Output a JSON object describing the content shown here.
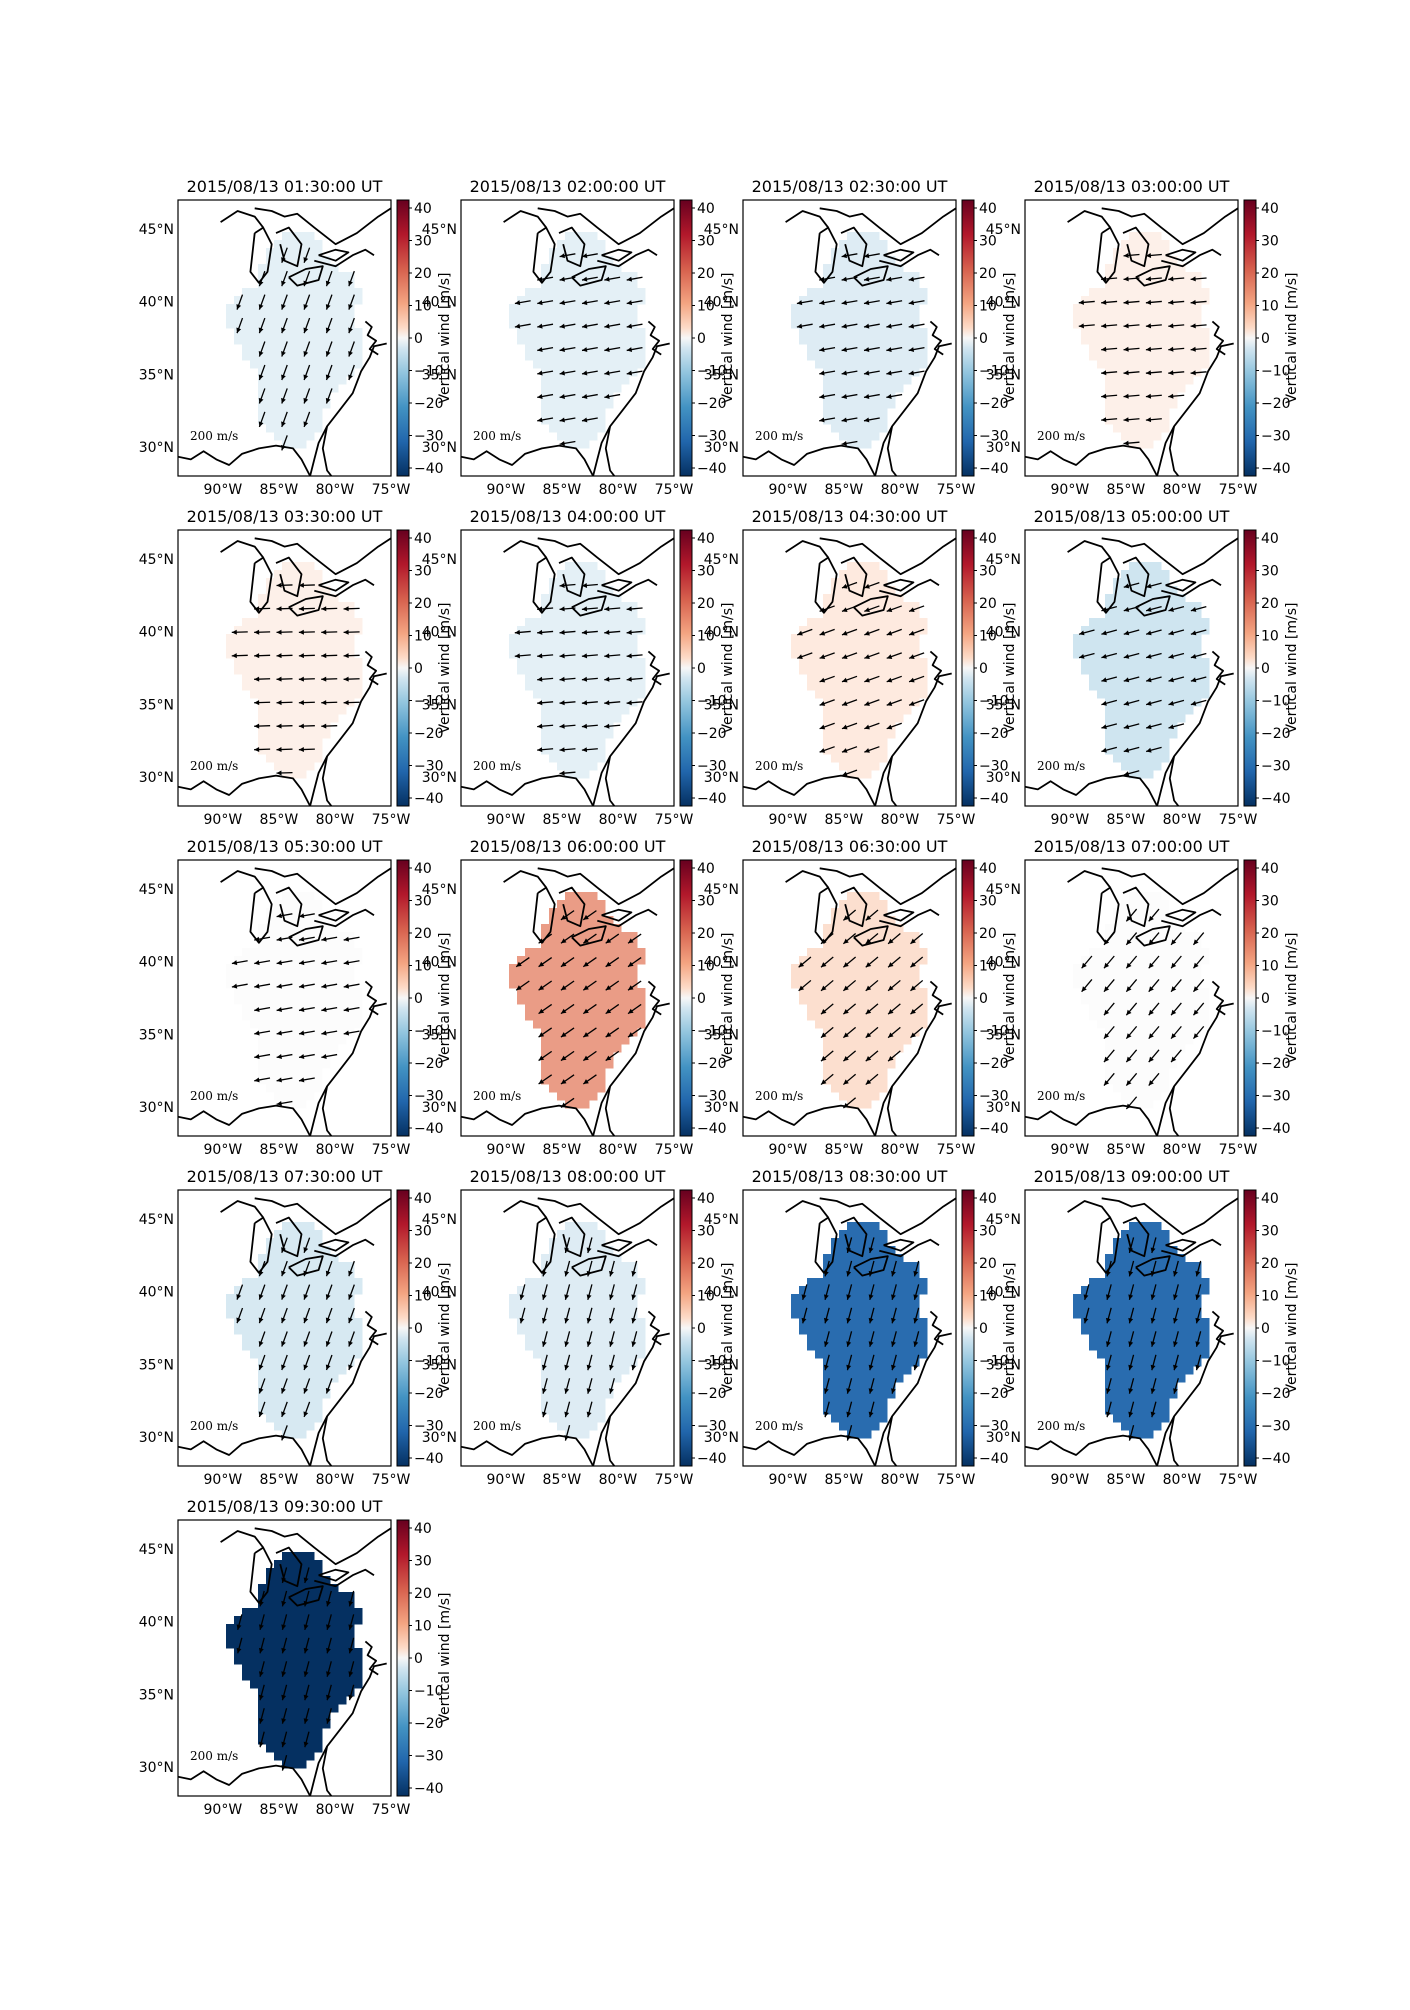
{
  "figure": {
    "colorbar_label": "Vertical wind [m/s]",
    "colorbar_ticks": [
      "40",
      "30",
      "20",
      "10",
      "0",
      "−10",
      "−20",
      "−30",
      "−40"
    ],
    "colorbar_range": [
      -40,
      40
    ],
    "colormap": "RdBu_r",
    "lat_ticks": [
      "45°N",
      "40°N",
      "35°N",
      "30°N"
    ],
    "lon_ticks": [
      "90°W",
      "85°W",
      "80°W",
      "75°W"
    ],
    "reference_arrow_label": "200 m/s",
    "reference_arrow_value": "200",
    "reference_arrow_unit": "m/s"
  },
  "chart_data": {
    "type": "heatmap",
    "map_extent": {
      "lon": [
        -94,
        -75
      ],
      "lat": [
        28,
        47
      ]
    },
    "panels": [
      {
        "title": "2015/08/13 01:30:00 UT",
        "vertical_wind": -3,
        "wind_dir_deg": 200
      },
      {
        "title": "2015/08/13 02:00:00 UT",
        "vertical_wind": -3,
        "wind_dir_deg": 260
      },
      {
        "title": "2015/08/13 02:30:00 UT",
        "vertical_wind": -4,
        "wind_dir_deg": 260
      },
      {
        "title": "2015/08/13 03:00:00 UT",
        "vertical_wind": 2,
        "wind_dir_deg": 265
      },
      {
        "title": "2015/08/13 03:30:00 UT",
        "vertical_wind": 2,
        "wind_dir_deg": 268
      },
      {
        "title": "2015/08/13 04:00:00 UT",
        "vertical_wind": -3,
        "wind_dir_deg": 265
      },
      {
        "title": "2015/08/13 04:30:00 UT",
        "vertical_wind": 3,
        "wind_dir_deg": 250
      },
      {
        "title": "2015/08/13 05:00:00 UT",
        "vertical_wind": -6,
        "wind_dir_deg": 255
      },
      {
        "title": "2015/08/13 05:30:00 UT",
        "vertical_wind": 0,
        "wind_dir_deg": 260
      },
      {
        "title": "2015/08/13 06:00:00 UT",
        "vertical_wind": 15,
        "wind_dir_deg": 235
      },
      {
        "title": "2015/08/13 06:30:00 UT",
        "vertical_wind": 5,
        "wind_dir_deg": 230
      },
      {
        "title": "2015/08/13 07:00:00 UT",
        "vertical_wind": 0,
        "wind_dir_deg": 220
      },
      {
        "title": "2015/08/13 07:30:00 UT",
        "vertical_wind": -5,
        "wind_dir_deg": 200
      },
      {
        "title": "2015/08/13 08:00:00 UT",
        "vertical_wind": -4,
        "wind_dir_deg": 195
      },
      {
        "title": "2015/08/13 08:30:00 UT",
        "vertical_wind": -30,
        "wind_dir_deg": 195
      },
      {
        "title": "2015/08/13 09:00:00 UT",
        "vertical_wind": -30,
        "wind_dir_deg": 195
      },
      {
        "title": "2015/08/13 09:30:00 UT",
        "vertical_wind": -40,
        "wind_dir_deg": 195
      }
    ]
  }
}
